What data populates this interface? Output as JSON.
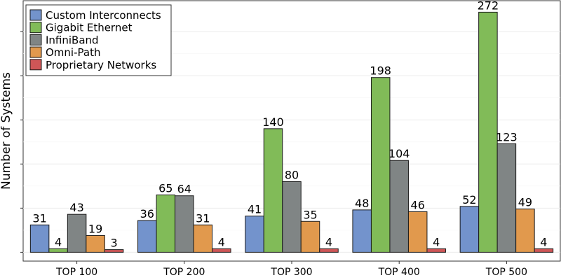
{
  "chart_data": {
    "type": "bar",
    "title": "",
    "xlabel": "",
    "ylabel": "Number of Systems",
    "ylim": [
      -10,
      285
    ],
    "y_ticks": [
      0,
      50,
      100,
      150,
      200,
      250
    ],
    "y_tick_labels_shown": false,
    "grid": true,
    "legend_position": "top-left",
    "categories": [
      "TOP 100",
      "TOP 200",
      "TOP 300",
      "TOP 400",
      "TOP 500"
    ],
    "series": [
      {
        "name": "Custom Interconnects",
        "color": "#7393cc",
        "values": [
          31,
          36,
          41,
          48,
          52
        ]
      },
      {
        "name": "Gigabit Ethernet",
        "color": "#81bb58",
        "values": [
          4,
          65,
          140,
          198,
          272
        ]
      },
      {
        "name": "InfiniBand",
        "color": "#808585",
        "values": [
          43,
          64,
          80,
          104,
          123
        ]
      },
      {
        "name": "Omni-Path",
        "color": "#e1994d",
        "values": [
          19,
          31,
          35,
          46,
          49
        ]
      },
      {
        "name": "Proprietary Networks",
        "color": "#cf5657",
        "values": [
          3,
          4,
          4,
          4,
          4
        ]
      }
    ]
  }
}
